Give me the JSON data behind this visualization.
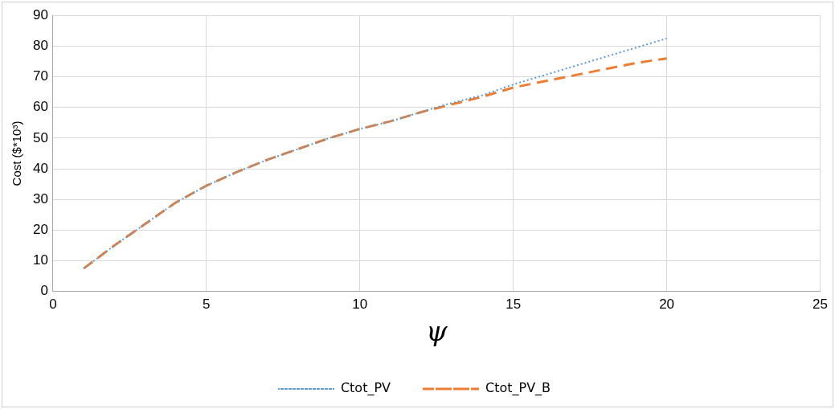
{
  "chart_data": {
    "type": "line",
    "xlabel": "ψ",
    "ylabel": "Cost ($*10³)",
    "x": [
      1,
      2,
      3,
      4,
      5,
      6,
      7,
      8,
      9,
      10,
      11,
      12,
      13,
      14,
      15,
      16,
      17,
      18,
      19,
      20
    ],
    "xlim": [
      0,
      25
    ],
    "xticks": [
      0,
      5,
      10,
      15,
      20,
      25
    ],
    "ylim": [
      0,
      90
    ],
    "yticks": [
      0,
      10,
      20,
      30,
      40,
      50,
      60,
      70,
      80,
      90
    ],
    "grid": true,
    "legend": "bottom",
    "marker": "none",
    "series": [
      {
        "name": "Ctot_PV",
        "color": "#5b9bd5",
        "line_style": "dotted",
        "values": [
          7.5,
          15,
          22,
          29,
          34.5,
          39,
          43,
          46.5,
          50,
          53,
          55.5,
          58.5,
          61.5,
          64,
          67.5,
          70.5,
          73.5,
          76.5,
          79.5,
          82.5
        ]
      },
      {
        "name": "Ctot_PV_B",
        "color": "#ed7d31",
        "line_style": "dashed",
        "values": [
          7.5,
          15,
          22,
          29,
          34.5,
          39,
          43,
          46.5,
          50,
          53,
          55.5,
          58.5,
          61,
          63.5,
          66.5,
          68.5,
          70.5,
          72.5,
          74.5,
          76
        ]
      }
    ]
  }
}
